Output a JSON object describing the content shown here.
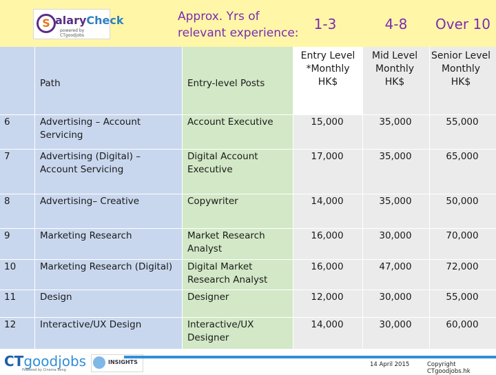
{
  "brand": {
    "logo_main_1": "S",
    "logo_main_2": "alary",
    "logo_main_3": "Check",
    "logo_sub": "powered by CTgoodjobs"
  },
  "experience_label": "Approx. Yrs of relevant experience:",
  "ranges": [
    "1-3",
    "4-8",
    "Over 10"
  ],
  "levels": [
    "Entry Level *Monthly HK$",
    "Mid Level Monthly HK$",
    "Senior Level Monthly HK$"
  ],
  "columns": {
    "path": "Path",
    "posts": "Entry-level Posts"
  },
  "rows": [
    {
      "no": "6",
      "path": "Advertising – Account Servicing",
      "post": "Account Executive",
      "entry": "15,000",
      "mid": "35,000",
      "senior": "55,000"
    },
    {
      "no": "7",
      "path": "Advertising (Digital) – Account Servicing",
      "post": "Digital Account Executive",
      "entry": "17,000",
      "mid": "35,000",
      "senior": "65,000"
    },
    {
      "no": "8",
      "path": "Advertising– Creative",
      "post": "Copywriter",
      "entry": "14,000",
      "mid": "35,000",
      "senior": "50,000"
    },
    {
      "no": "9",
      "path": "Marketing Research",
      "post": "Market Research Analyst",
      "entry": "16,000",
      "mid": "30,000",
      "senior": "70,000"
    },
    {
      "no": "10",
      "path": "Marketing Research (Digital)",
      "post": "Digital Market Research Analyst",
      "entry": "16,000",
      "mid": "47,000",
      "senior": "72,000"
    },
    {
      "no": "11",
      "path": "Design",
      "post": "Designer",
      "entry": "12,000",
      "mid": "30,000",
      "senior": "55,000"
    },
    {
      "no": "12",
      "path": "Interactive/UX Design",
      "post": "Interactive/UX Designer",
      "entry": "14,000",
      "mid": "30,000",
      "senior": "60,000"
    }
  ],
  "footer": {
    "ct_1": "CT",
    "ct_2": "goodjobs",
    "ct_sub": "Powered by Cinema Seng",
    "insights": "INSIGHTS",
    "date": "14 April 2015",
    "copyright": "Copyright CTgoodjobs.hk"
  },
  "colors": {
    "header_yellow": "#fff6a8",
    "row_blue": "#c9d7ee",
    "col_green": "#d2e8c6",
    "purple": "#7a2cb0"
  }
}
